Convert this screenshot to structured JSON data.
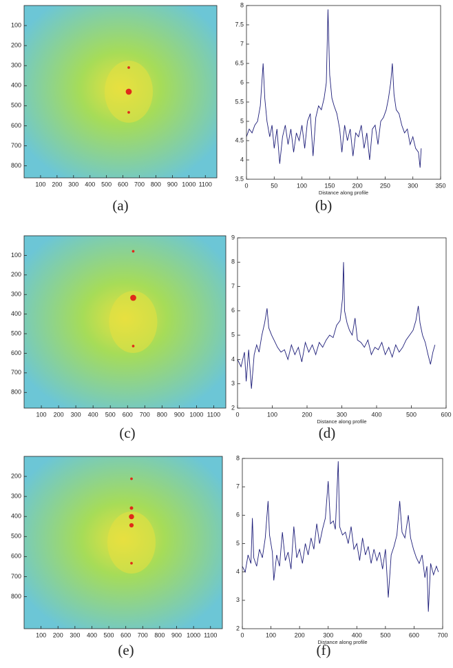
{
  "chart_data": [
    {
      "type": "heatmap",
      "caption": "(a)",
      "xlim": [
        0,
        1170
      ],
      "ylim": [
        0,
        860
      ],
      "y_reversed": true,
      "xticks": [
        100,
        200,
        300,
        400,
        500,
        600,
        700,
        800,
        900,
        1000,
        1100
      ],
      "yticks": [
        100,
        200,
        300,
        400,
        500,
        600,
        700,
        800
      ],
      "colormap": [
        "#e02a1a",
        "#e8e040",
        "#a6dc58",
        "#6cc6d6"
      ]
    },
    {
      "type": "line",
      "caption": "(b)",
      "xlabel": "Distance along profile",
      "color": "#1c1c78",
      "xlim": [
        0,
        350
      ],
      "ylim": [
        3.5,
        8
      ],
      "xticks": [
        0,
        50,
        100,
        150,
        200,
        250,
        300,
        350
      ],
      "yticks": [
        3.5,
        4,
        4.5,
        5,
        5.5,
        6,
        6.5,
        7,
        7.5,
        8
      ],
      "x": [
        0,
        5,
        10,
        15,
        20,
        25,
        30,
        33,
        37,
        42,
        46,
        50,
        55,
        60,
        65,
        70,
        75,
        80,
        85,
        90,
        95,
        100,
        105,
        110,
        115,
        120,
        125,
        130,
        135,
        140,
        144,
        147,
        150,
        154,
        158,
        163,
        168,
        172,
        177,
        182,
        187,
        192,
        197,
        202,
        207,
        212,
        217,
        222,
        227,
        232,
        237,
        242,
        247,
        252,
        256,
        260,
        263,
        266,
        270,
        275,
        280,
        285,
        290,
        295,
        300,
        305,
        310,
        313,
        315
      ],
      "values": [
        4.6,
        4.8,
        4.7,
        4.9,
        5.0,
        5.4,
        6.5,
        5.6,
        5.0,
        4.6,
        4.9,
        4.3,
        4.8,
        3.9,
        4.6,
        4.9,
        4.4,
        4.8,
        4.2,
        4.7,
        4.5,
        4.9,
        4.3,
        5.0,
        5.2,
        4.1,
        5.1,
        5.4,
        5.3,
        5.6,
        6.0,
        7.9,
        6.2,
        5.6,
        5.4,
        5.2,
        4.8,
        4.2,
        4.9,
        4.5,
        4.8,
        4.1,
        4.7,
        4.6,
        4.9,
        4.3,
        4.7,
        4.0,
        4.8,
        4.9,
        4.4,
        5.0,
        5.1,
        5.3,
        5.6,
        6.0,
        6.5,
        5.7,
        5.3,
        5.2,
        4.9,
        4.7,
        4.8,
        4.4,
        4.6,
        4.3,
        4.2,
        3.8,
        4.3
      ]
    },
    {
      "type": "heatmap",
      "caption": "(c)",
      "xlim": [
        0,
        1170
      ],
      "ylim": [
        0,
        880
      ],
      "y_reversed": true,
      "xticks": [
        100,
        200,
        300,
        400,
        500,
        600,
        700,
        800,
        900,
        1000,
        1100
      ],
      "yticks": [
        100,
        200,
        300,
        400,
        500,
        600,
        700,
        800
      ],
      "colormap": [
        "#e02a1a",
        "#e8e040",
        "#a6dc58",
        "#6cc6d6"
      ]
    },
    {
      "type": "line",
      "caption": "(d)",
      "xlabel": "Distance along profile",
      "color": "#1c1c78",
      "xlim": [
        0,
        600
      ],
      "ylim": [
        2,
        9
      ],
      "xticks": [
        0,
        100,
        200,
        300,
        400,
        500,
        600
      ],
      "yticks": [
        2,
        3,
        4,
        5,
        6,
        7,
        8,
        9
      ],
      "x": [
        0,
        10,
        20,
        25,
        32,
        40,
        48,
        55,
        62,
        70,
        78,
        85,
        90,
        98,
        105,
        115,
        125,
        135,
        145,
        155,
        165,
        175,
        185,
        195,
        205,
        215,
        225,
        235,
        245,
        255,
        265,
        275,
        285,
        295,
        302,
        305,
        308,
        315,
        322,
        330,
        338,
        345,
        355,
        365,
        375,
        385,
        395,
        405,
        415,
        425,
        435,
        445,
        455,
        465,
        475,
        485,
        495,
        505,
        513,
        520,
        525,
        532,
        540,
        548,
        555,
        562,
        568
      ],
      "values": [
        4.0,
        3.7,
        4.3,
        3.1,
        4.4,
        2.8,
        4.2,
        4.6,
        4.3,
        5.0,
        5.5,
        6.1,
        5.3,
        5.0,
        4.8,
        4.5,
        4.3,
        4.4,
        4.0,
        4.6,
        4.2,
        4.5,
        3.9,
        4.7,
        4.3,
        4.6,
        4.2,
        4.7,
        4.5,
        4.8,
        5.0,
        4.9,
        5.4,
        5.6,
        6.5,
        8.0,
        6.0,
        5.5,
        5.2,
        5.0,
        5.7,
        4.8,
        4.7,
        4.5,
        4.8,
        4.2,
        4.5,
        4.4,
        4.7,
        4.2,
        4.5,
        4.1,
        4.6,
        4.3,
        4.5,
        4.8,
        5.0,
        5.2,
        5.6,
        6.2,
        5.5,
        5.0,
        4.7,
        4.2,
        3.8,
        4.3,
        4.6
      ]
    },
    {
      "type": "heatmap",
      "caption": "(e)",
      "xlim": [
        0,
        1170
      ],
      "ylim": [
        100,
        960
      ],
      "y_reversed": true,
      "xticks": [
        100,
        200,
        300,
        400,
        500,
        600,
        700,
        800,
        900,
        1000,
        1100
      ],
      "yticks": [
        200,
        300,
        400,
        500,
        600,
        700,
        800
      ],
      "colormap": [
        "#e02a1a",
        "#e8e040",
        "#a6dc58",
        "#6cc6d6"
      ]
    },
    {
      "type": "line",
      "caption": "(f)",
      "xlabel": "Distance along profile",
      "color": "#1c1c78",
      "xlim": [
        0,
        700
      ],
      "ylim": [
        2,
        8
      ],
      "xticks": [
        0,
        100,
        200,
        300,
        400,
        500,
        600,
        700
      ],
      "yticks": [
        2,
        3,
        4,
        5,
        6,
        7,
        8
      ],
      "x": [
        0,
        10,
        20,
        30,
        35,
        40,
        50,
        60,
        70,
        80,
        90,
        95,
        105,
        110,
        120,
        130,
        140,
        150,
        160,
        170,
        180,
        190,
        200,
        210,
        220,
        230,
        240,
        250,
        260,
        270,
        280,
        290,
        300,
        308,
        318,
        325,
        335,
        340,
        350,
        360,
        370,
        380,
        390,
        400,
        410,
        420,
        430,
        440,
        450,
        460,
        470,
        480,
        490,
        500,
        510,
        520,
        530,
        540,
        550,
        558,
        568,
        580,
        588,
        598,
        608,
        618,
        628,
        638,
        645,
        650,
        658,
        668,
        678,
        685
      ],
      "values": [
        4.2,
        4.0,
        4.6,
        4.3,
        5.9,
        4.5,
        4.2,
        4.8,
        4.5,
        5.2,
        6.5,
        5.3,
        4.7,
        3.7,
        4.6,
        4.2,
        5.4,
        4.4,
        4.7,
        4.1,
        5.6,
        4.5,
        4.8,
        4.3,
        5.0,
        4.6,
        5.2,
        4.8,
        5.7,
        5.0,
        5.5,
        5.9,
        7.2,
        5.7,
        5.8,
        5.5,
        7.9,
        5.6,
        5.3,
        5.4,
        5.0,
        5.6,
        4.8,
        5.0,
        4.4,
        5.2,
        4.6,
        4.9,
        4.3,
        4.8,
        4.4,
        4.7,
        4.1,
        4.8,
        3.1,
        4.6,
        4.9,
        5.3,
        6.5,
        5.4,
        5.2,
        6.0,
        5.2,
        4.8,
        4.5,
        4.3,
        4.6,
        3.8,
        4.2,
        2.6,
        4.3,
        3.9,
        4.2,
        4.0
      ]
    }
  ]
}
